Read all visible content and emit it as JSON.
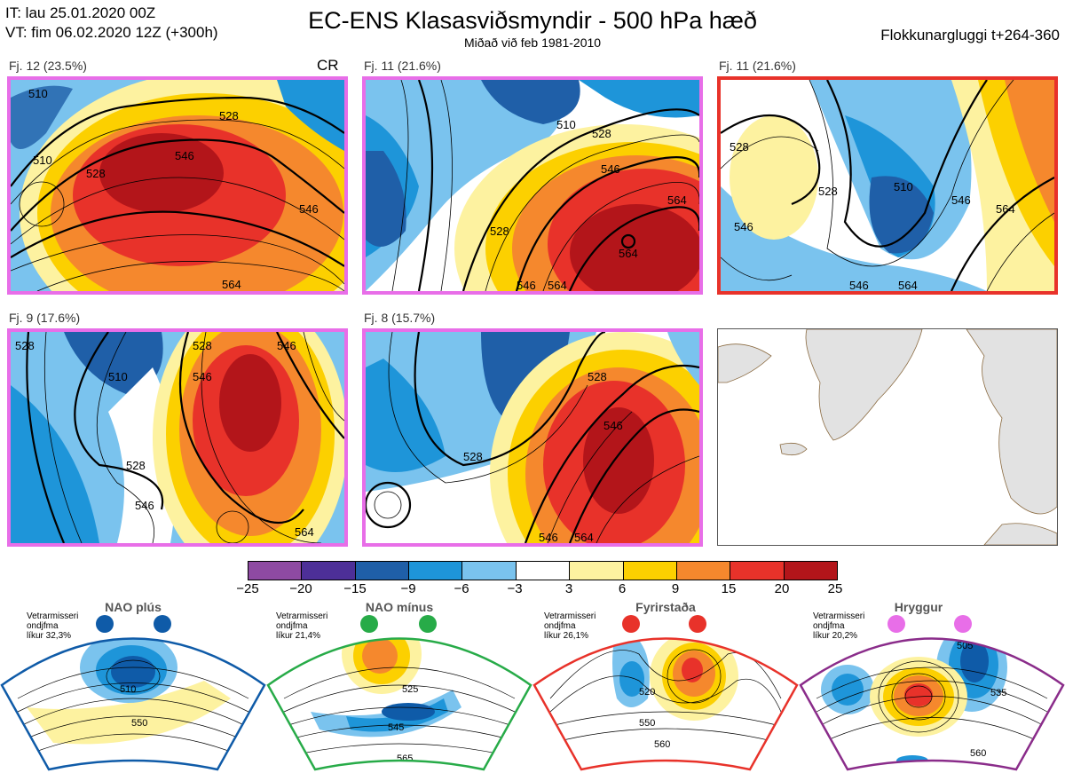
{
  "header": {
    "it_line": "IT: lau 25.01.2020 00Z",
    "vt_line": "VT: fim 06.02.2020 12Z  (+300h)",
    "title": "EC-ENS Klasasviðsmyndir - 500 hPa hæð",
    "subtitle": "Miðað við feb 1981-2010",
    "window": "Flokkunargluggi t+264-360"
  },
  "panels": [
    {
      "label": "Fj. 12 (23.5%)",
      "tag": "CR",
      "frame_color": "#e86ee8"
    },
    {
      "label": "Fj. 11 (21.6%)",
      "frame_color": "#e86ee8"
    },
    {
      "label": "Fj. 11 (21.6%)",
      "frame_color": "#e8322a"
    },
    {
      "label": "Fj. 9 (17.6%)",
      "frame_color": "#e86ee8"
    },
    {
      "label": "Fj. 8 (15.7%)",
      "frame_color": "#e86ee8"
    }
  ],
  "colorbar": {
    "ticks": [
      "−25",
      "−20",
      "−15",
      "−9",
      "−6",
      "−3",
      "3",
      "6",
      "9",
      "15",
      "20",
      "25"
    ],
    "colors": [
      "#8e4aa2",
      "#4d2f98",
      "#1f5fa8",
      "#1e95d9",
      "#7ac3ee",
      "#ffffff",
      "#fdf2a0",
      "#fcd000",
      "#f5882d",
      "#e8322a",
      "#b3151a"
    ]
  },
  "regimes": [
    {
      "name": "NAO plús",
      "info": [
        "Vetrarmisseri",
        "ondjfma",
        "líkur 32,3%"
      ],
      "color": "#0f5ba8",
      "contours": [
        "510",
        "550"
      ]
    },
    {
      "name": "NAO mínus",
      "info": [
        "Vetrarmisseri",
        "ondjfma",
        "líkur 21,4%"
      ],
      "color": "#27ab48",
      "contours": [
        "525",
        "545",
        "565"
      ]
    },
    {
      "name": "Fyrirstaða",
      "info": [
        "Vetrarmisseri",
        "ondjfma",
        "líkur 26,1%"
      ],
      "color": "#e8322a",
      "contours": [
        "520",
        "550",
        "560"
      ]
    },
    {
      "name": "Hryggur",
      "info": [
        "Vetrarmisseri",
        "ondjfma",
        "líkur 20,2%"
      ],
      "color": "#e86ee8",
      "contours": [
        "505",
        "535",
        "560"
      ]
    }
  ],
  "map_labels": {
    "p1": [
      "510",
      "510",
      "528",
      "546",
      "528",
      "546",
      "564"
    ],
    "p2": [
      "510",
      "528",
      "546",
      "564",
      "564",
      "528",
      "546",
      "564"
    ],
    "p3": [
      "528",
      "546",
      "528",
      "546",
      "564",
      "510",
      "546",
      "564"
    ],
    "p4": [
      "528",
      "510",
      "546",
      "528",
      "546",
      "546",
      "564",
      "528"
    ],
    "p5": [
      "528",
      "528",
      "546",
      "546",
      "564"
    ]
  }
}
